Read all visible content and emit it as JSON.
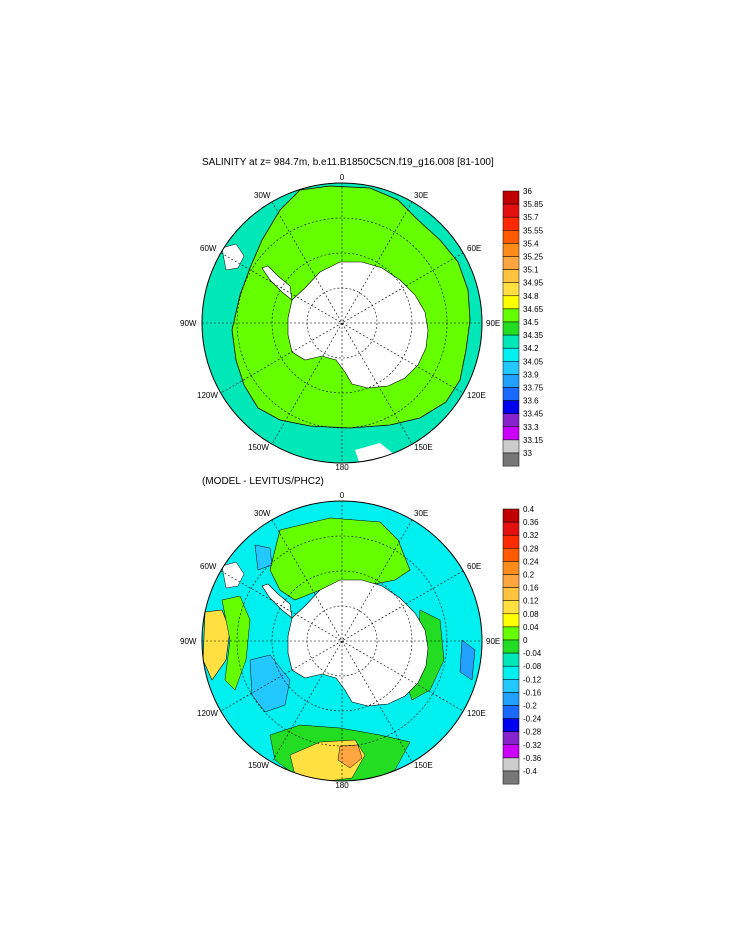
{
  "panels": {
    "top": {
      "title": "SALINITY at z= 984.7m, b.e11.B1850C5CN.f19_g16.008 [81-100]"
    },
    "bottom": {
      "title": "(MODEL - LEVITUS/PHC2)"
    }
  },
  "longitude_labels": {
    "top": "0",
    "n30e": "30E",
    "n60e": "60E",
    "e90": "90E",
    "e120": "120E",
    "e150": "150E",
    "bottom": "180",
    "w150": "150W",
    "w120": "120W",
    "w90": "90W",
    "w60": "60W",
    "w30": "30W"
  },
  "colorbars": {
    "top": {
      "labels": [
        "36",
        "35.85",
        "35.7",
        "35.55",
        "35.4",
        "35.25",
        "35.1",
        "34.95",
        "34.8",
        "34.65",
        "34.5",
        "34.35",
        "34.2",
        "34.05",
        "33.9",
        "33.75",
        "33.6",
        "33.45",
        "33.3",
        "33.15",
        "33"
      ],
      "colors": [
        "#c00000",
        "#e41010",
        "#ff2a00",
        "#ff5a00",
        "#ff8c1a",
        "#ffa640",
        "#ffc43d",
        "#ffe040",
        "#ffff00",
        "#66ff00",
        "#22dd22",
        "#00e8b8",
        "#00f0f0",
        "#22c8ff",
        "#22a0ff",
        "#1a6aff",
        "#0000ee",
        "#8822cc",
        "#cc00ff",
        "#cccccc",
        "#777777"
      ]
    },
    "bottom": {
      "labels": [
        "0.4",
        "0.36",
        "0.32",
        "0.28",
        "0.24",
        "0.2",
        "0.16",
        "0.12",
        "0.08",
        "0.04",
        "0",
        "-0.04",
        "-0.08",
        "-0.12",
        "-0.16",
        "-0.2",
        "-0.24",
        "-0.28",
        "-0.32",
        "-0.36",
        "-0.4"
      ],
      "colors": [
        "#c00000",
        "#e41010",
        "#ff2a00",
        "#ff5a00",
        "#ff8c1a",
        "#ffa640",
        "#ffc43d",
        "#ffe040",
        "#ffff00",
        "#66ff00",
        "#22dd22",
        "#00e8b8",
        "#00f0f0",
        "#22c8ff",
        "#22a0ff",
        "#1a6aff",
        "#0000ee",
        "#8822cc",
        "#cc00ff",
        "#cccccc",
        "#777777"
      ]
    }
  },
  "map_colors": {
    "ocean_top": "#66ff00",
    "ocean_top_edge": "#00e8b8",
    "ocean_bottom_green": "#66ff00",
    "ocean_bottom_cyan": "#00f0f0",
    "ocean_bottom_teal": "#00e8b8",
    "ocean_bottom_light_blue": "#22c8ff",
    "ocean_bottom_yellow": "#ffe040",
    "ocean_bottom_orange": "#ffa640",
    "land": "#ffffff"
  }
}
